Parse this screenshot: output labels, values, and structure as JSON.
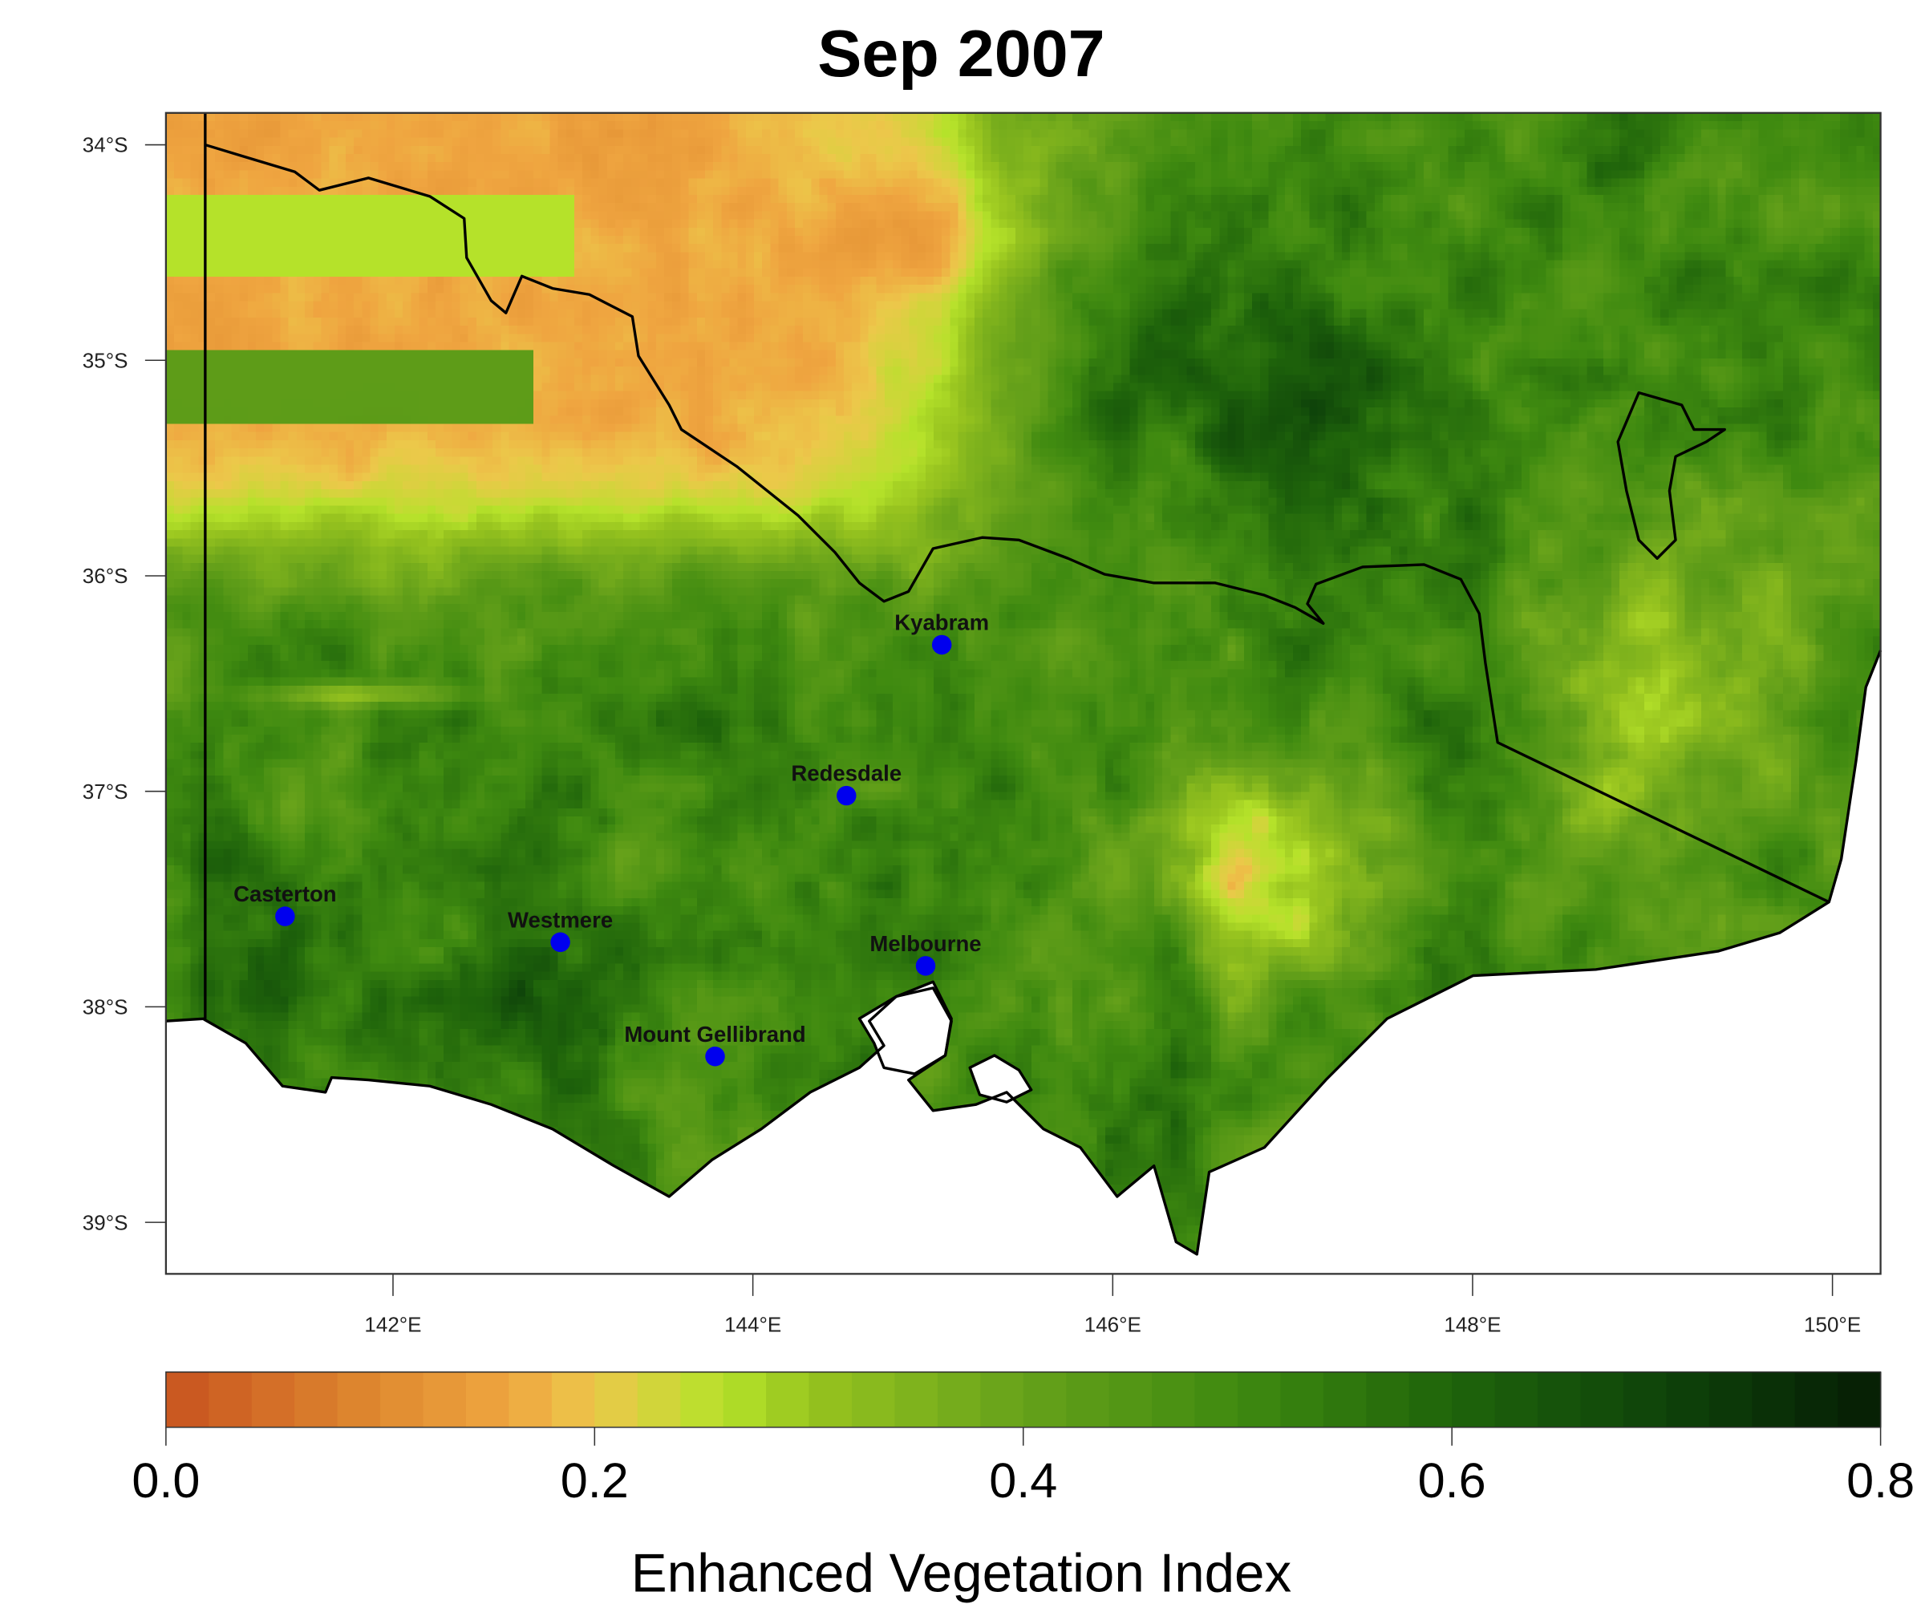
{
  "chart_data": {
    "type": "heatmap",
    "title": "Sep 2007",
    "colorbar_label": "Enhanced Vegetation Index",
    "colorbar_ticks": [
      "0.0",
      "0.2",
      "0.4",
      "0.6",
      "0.8"
    ],
    "colorbar_range": [
      0.0,
      0.8
    ],
    "colorbar_bins": 40,
    "palette": [
      {
        "v": 0.0,
        "c": "#c8531f"
      },
      {
        "v": 0.1,
        "c": "#df8a30"
      },
      {
        "v": 0.16,
        "c": "#efa540"
      },
      {
        "v": 0.2,
        "c": "#ecc84a"
      },
      {
        "v": 0.26,
        "c": "#b5e22a"
      },
      {
        "v": 0.3,
        "c": "#98c41f"
      },
      {
        "v": 0.4,
        "c": "#66a11a"
      },
      {
        "v": 0.5,
        "c": "#3f8a10"
      },
      {
        "v": 0.6,
        "c": "#1f640b"
      },
      {
        "v": 0.7,
        "c": "#0e430a"
      },
      {
        "v": 0.8,
        "c": "#061d04"
      }
    ],
    "x_ticks": [
      {
        "value": 142,
        "label": "142°E"
      },
      {
        "value": 144,
        "label": "144°E"
      },
      {
        "value": 146,
        "label": "146°E"
      },
      {
        "value": 148,
        "label": "148°E"
      },
      {
        "value": 150,
        "label": "150°E"
      }
    ],
    "y_ticks": [
      {
        "value": 34,
        "label": "34°S"
      },
      {
        "value": 35,
        "label": "35°S"
      },
      {
        "value": 36,
        "label": "36°S"
      },
      {
        "value": 37,
        "label": "37°S"
      },
      {
        "value": 38,
        "label": "38°S"
      },
      {
        "value": 39,
        "label": "39°S"
      }
    ],
    "xlim": [
      140.74,
      150.26
    ],
    "ylim_south": [
      33.85,
      39.24
    ],
    "cities": [
      {
        "name": "Kyabram",
        "lon": 145.05,
        "lat": 36.32
      },
      {
        "name": "Redesdale",
        "lon": 144.52,
        "lat": 37.02
      },
      {
        "name": "Casterton",
        "lon": 141.4,
        "lat": 37.58
      },
      {
        "name": "Westmere",
        "lon": 142.93,
        "lat": 37.7
      },
      {
        "name": "Melbourne",
        "lon": 144.96,
        "lat": 37.81
      },
      {
        "name": "Mount Gellibrand",
        "lon": 143.79,
        "lat": 38.23
      }
    ],
    "city_color": "#0000ee"
  }
}
